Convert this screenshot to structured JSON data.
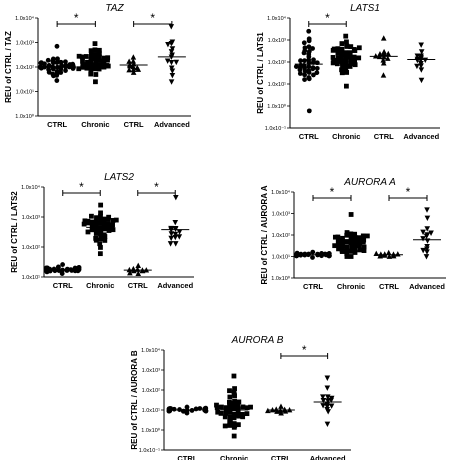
{
  "figure_title": "",
  "chart_data": [
    {
      "type": "scatter",
      "title": "TAZ",
      "ylabel": "REU of CTRL / TAZ",
      "y_scale": "log",
      "ylim": [
        1,
        10000
      ],
      "yticks": [
        "10⁰",
        "10¹",
        "10²",
        "10³",
        "10⁴"
      ],
      "ytick_labels": [
        "1.0x10⁰",
        "1.0x10¹",
        "1.0x10²",
        "1.0x10³",
        "1.0x10⁴"
      ],
      "categories": [
        "CTRL",
        "Chronic",
        "CTRL",
        "Advanced"
      ],
      "groups": [
        {
          "label": "CTRL",
          "marker": "circle",
          "n": 44,
          "median": 100,
          "min": 28,
          "max": 700
        },
        {
          "label": "Chronic",
          "marker": "square",
          "n": 42,
          "median": 140,
          "min": 25,
          "max": 900
        },
        {
          "label": "CTRL",
          "marker": "triangle-up",
          "n": 12,
          "median": 120,
          "min": 60,
          "max": 250
        },
        {
          "label": "Advanced",
          "marker": "triangle-down",
          "n": 15,
          "median": 260,
          "min": 25,
          "max": 4500
        }
      ],
      "significance": [
        {
          "groups": [
            0,
            1
          ],
          "label": "*"
        },
        {
          "groups": [
            2,
            3
          ],
          "label": "*"
        }
      ]
    },
    {
      "type": "scatter",
      "title": "LATS1",
      "ylabel": "REU of CTRL / LATS1",
      "y_scale": "log",
      "ylim": [
        0.1,
        10000
      ],
      "yticks": [
        "10⁻¹",
        "10⁰",
        "10¹",
        "10²",
        "10³",
        "10⁴"
      ],
      "ytick_labels": [
        "1.0x10⁻¹",
        "1.0x10⁰",
        "1.0x10¹",
        "1.0x10²",
        "1.0x10³",
        "1.0x10⁴"
      ],
      "categories": [
        "CTRL",
        "Chronic",
        "CTRL",
        "Advanced"
      ],
      "groups": [
        {
          "label": "CTRL",
          "marker": "circle",
          "n": 40,
          "median": 80,
          "min": 0.6,
          "max": 2500
        },
        {
          "label": "Chronic",
          "marker": "square",
          "n": 48,
          "median": 140,
          "min": 8,
          "max": 1500
        },
        {
          "label": "CTRL",
          "marker": "triangle-up",
          "n": 12,
          "median": 180,
          "min": 25,
          "max": 1200
        },
        {
          "label": "Advanced",
          "marker": "triangle-down",
          "n": 14,
          "median": 130,
          "min": 15,
          "max": 600
        }
      ],
      "significance": [
        {
          "groups": [
            0,
            1
          ],
          "label": "*"
        }
      ]
    },
    {
      "type": "scatter",
      "title": "LATS2",
      "ylabel": "REU of CTRL / LATS2",
      "y_scale": "log",
      "ylim": [
        10,
        10000
      ],
      "yticks": [
        "10¹",
        "10²",
        "10³",
        "10⁴"
      ],
      "ytick_labels": [
        "1.0x10¹",
        "1.0x10²",
        "1.0x10³",
        "1.0x10⁴"
      ],
      "categories": [
        "CTRL",
        "Chronic",
        "CTRL",
        "Advanced"
      ],
      "groups": [
        {
          "label": "CTRL",
          "marker": "circle",
          "n": 40,
          "median": 18,
          "min": 13,
          "max": 26
        },
        {
          "label": "Chronic",
          "marker": "square",
          "n": 48,
          "median": 450,
          "min": 60,
          "max": 2500
        },
        {
          "label": "CTRL",
          "marker": "triangle-up",
          "n": 10,
          "median": 17,
          "min": 13,
          "max": 24
        },
        {
          "label": "Advanced",
          "marker": "triangle-down",
          "n": 14,
          "median": 380,
          "min": 130,
          "max": 4500
        }
      ],
      "significance": [
        {
          "groups": [
            0,
            1
          ],
          "label": "*"
        },
        {
          "groups": [
            2,
            3
          ],
          "label": "*"
        }
      ]
    },
    {
      "type": "scatter",
      "title": "AURORA A",
      "ylabel": "REU of CTRL / AURORA A",
      "y_scale": "log",
      "ylim": [
        1,
        10000
      ],
      "yticks": [
        "10⁰",
        "10¹",
        "10²",
        "10³",
        "10⁴"
      ],
      "ytick_labels": [
        "1.0x10⁰",
        "1.0x10¹",
        "1.0x10²",
        "1.0x10³",
        "1.0x10⁴"
      ],
      "categories": [
        "CTRL",
        "Chronic",
        "CTRL",
        "Advanced"
      ],
      "groups": [
        {
          "label": "CTRL",
          "marker": "circle",
          "n": 40,
          "median": 12,
          "min": 9,
          "max": 16
        },
        {
          "label": "Chronic",
          "marker": "square",
          "n": 48,
          "median": 40,
          "min": 10,
          "max": 900
        },
        {
          "label": "CTRL",
          "marker": "triangle-up",
          "n": 10,
          "median": 12,
          "min": 10,
          "max": 15
        },
        {
          "label": "Advanced",
          "marker": "triangle-down",
          "n": 14,
          "median": 60,
          "min": 10,
          "max": 1500
        }
      ],
      "significance": [
        {
          "groups": [
            0,
            1
          ],
          "label": "*"
        },
        {
          "groups": [
            2,
            3
          ],
          "label": "*"
        }
      ]
    },
    {
      "type": "scatter",
      "title": "AURORA B",
      "ylabel": "REU of CTRL / AURORA B",
      "y_scale": "log",
      "ylim": [
        0.1,
        10000
      ],
      "yticks": [
        "10⁻¹",
        "10⁰",
        "10¹",
        "10²",
        "10³",
        "10⁴"
      ],
      "ytick_labels": [
        "1.0x10⁻¹",
        "1.0x10⁰",
        "1.0x10¹",
        "1.0x10²",
        "1.0x10³",
        "1.0x10⁴"
      ],
      "categories": [
        "CTRL",
        "Chronic",
        "CTRL",
        "Advanced"
      ],
      "groups": [
        {
          "label": "CTRL",
          "marker": "circle",
          "n": 40,
          "median": 10,
          "min": 7,
          "max": 14
        },
        {
          "label": "Chronic",
          "marker": "square",
          "n": 48,
          "median": 10,
          "min": 0.5,
          "max": 500
        },
        {
          "label": "CTRL",
          "marker": "triangle-up",
          "n": 10,
          "median": 10,
          "min": 7,
          "max": 15
        },
        {
          "label": "Advanced",
          "marker": "triangle-down",
          "n": 15,
          "median": 25,
          "min": 2,
          "max": 400
        }
      ],
      "significance": [
        {
          "groups": [
            2,
            3
          ],
          "label": "*"
        }
      ]
    }
  ]
}
